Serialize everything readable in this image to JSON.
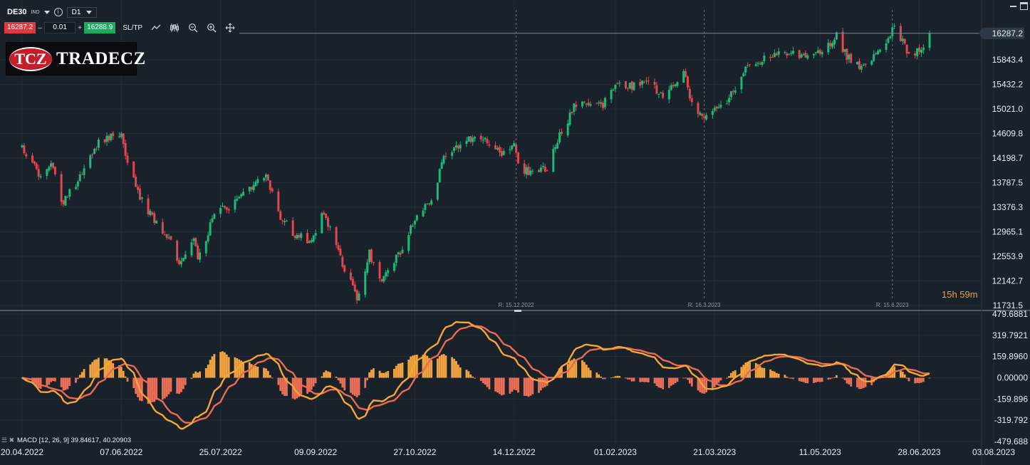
{
  "toolbar": {
    "symbol": "DE30",
    "asset_class": "IND",
    "timeframe": "D1",
    "bid": "16287.2",
    "lot_minus": "–",
    "lot": "0.01",
    "lot_plus": "+",
    "ask": "16288.9",
    "sltp": "SL/TP",
    "icons": [
      "line-chart-icon",
      "candles-icon",
      "zoom-out-icon",
      "zoom-in-icon",
      "crosshair-icon"
    ]
  },
  "logo": {
    "badge": "TCZ",
    "name": "TRADECZ"
  },
  "countdown": "15h 59m",
  "colors": {
    "background": "#19212a",
    "bullish": "#1bb97a",
    "bearish": "#e2464e",
    "macd_line": "#f7a534",
    "signal_line": "#ea6b51",
    "hist_positive": "#f2a440",
    "hist_negative": "#ec7058"
  },
  "chart_data": [
    {
      "type": "candlestick",
      "symbol": "DE30",
      "timeframe": "D1",
      "current_price": 16287.2,
      "y_ticks": [
        16287.2,
        15843.4,
        15432.2,
        15021.0,
        14609.8,
        14198.7,
        13787.5,
        13376.3,
        12965.1,
        12553.9,
        12142.7,
        11731.5
      ],
      "y_tick_labels": [
        "16287.2",
        "15843.4",
        "15432.2",
        "15021.0",
        "14609.8",
        "14198.7",
        "13787.5",
        "13376.3",
        "12965.1",
        "12553.9",
        "12142.7",
        "11731.5"
      ],
      "ylim": [
        11731.5,
        16700
      ],
      "x_tick_labels": [
        "20.04.2022",
        "07.06.2022",
        "25.07.2022",
        "09.09.2022",
        "27.10.2022",
        "14.12.2022",
        "01.02.2023",
        "21.03.2023",
        "11.05.2023",
        "28.06.2023",
        "03.08.2023"
      ],
      "rollover_markers": [
        "R: 15.12.2022",
        "R: 16.3.2023",
        "R: 15.6.2023"
      ],
      "anchors": [
        {
          "date": "2022-04-20",
          "close": 14400
        },
        {
          "date": "2022-04-29",
          "close": 13850
        },
        {
          "date": "2022-05-05",
          "close": 14100
        },
        {
          "date": "2022-05-09",
          "close": 13400
        },
        {
          "date": "2022-05-20",
          "close": 14000
        },
        {
          "date": "2022-05-27",
          "close": 14450
        },
        {
          "date": "2022-06-02",
          "close": 14560
        },
        {
          "date": "2022-06-07",
          "close": 14650
        },
        {
          "date": "2022-06-10",
          "close": 14100
        },
        {
          "date": "2022-06-16",
          "close": 13550
        },
        {
          "date": "2022-06-24",
          "close": 13100
        },
        {
          "date": "2022-07-01",
          "close": 12800
        },
        {
          "date": "2022-07-05",
          "close": 12450
        },
        {
          "date": "2022-07-12",
          "close": 12850
        },
        {
          "date": "2022-07-14",
          "close": 12500
        },
        {
          "date": "2022-07-22",
          "close": 13250
        },
        {
          "date": "2022-08-01",
          "close": 13450
        },
        {
          "date": "2022-08-16",
          "close": 13900
        },
        {
          "date": "2022-08-22",
          "close": 13250
        },
        {
          "date": "2022-08-29",
          "close": 12950
        },
        {
          "date": "2022-09-06",
          "close": 12800
        },
        {
          "date": "2022-09-13",
          "close": 13300
        },
        {
          "date": "2022-09-23",
          "close": 12350
        },
        {
          "date": "2022-09-29",
          "close": 11850
        },
        {
          "date": "2022-10-05",
          "close": 12600
        },
        {
          "date": "2022-10-11",
          "close": 12150
        },
        {
          "date": "2022-10-21",
          "close": 12700
        },
        {
          "date": "2022-10-28",
          "close": 13250
        },
        {
          "date": "2022-11-04",
          "close": 13450
        },
        {
          "date": "2022-11-10",
          "close": 14200
        },
        {
          "date": "2022-11-18",
          "close": 14450
        },
        {
          "date": "2022-11-25",
          "close": 14550
        },
        {
          "date": "2022-12-01",
          "close": 14500
        },
        {
          "date": "2022-12-08",
          "close": 14250
        },
        {
          "date": "2022-12-14",
          "close": 14450
        },
        {
          "date": "2022-12-16",
          "close": 14050
        },
        {
          "date": "2022-12-22",
          "close": 13950
        },
        {
          "date": "2022-12-30",
          "close": 14050
        },
        {
          "date": "2023-01-04",
          "close": 14500
        },
        {
          "date": "2023-01-12",
          "close": 15050
        },
        {
          "date": "2023-01-18",
          "close": 15150
        },
        {
          "date": "2023-01-26",
          "close": 15100
        },
        {
          "date": "2023-02-02",
          "close": 15450
        },
        {
          "date": "2023-02-09",
          "close": 15400
        },
        {
          "date": "2023-02-16",
          "close": 15500
        },
        {
          "date": "2023-02-24",
          "close": 15250
        },
        {
          "date": "2023-03-06",
          "close": 15600
        },
        {
          "date": "2023-03-10",
          "close": 15150
        },
        {
          "date": "2023-03-15",
          "close": 14850
        },
        {
          "date": "2023-03-20",
          "close": 14950
        },
        {
          "date": "2023-03-28",
          "close": 15200
        },
        {
          "date": "2023-04-04",
          "close": 15650
        },
        {
          "date": "2023-04-14",
          "close": 15850
        },
        {
          "date": "2023-04-21",
          "close": 15950
        },
        {
          "date": "2023-04-28",
          "close": 15950
        },
        {
          "date": "2023-05-04",
          "close": 15900
        },
        {
          "date": "2023-05-12",
          "close": 15950
        },
        {
          "date": "2023-05-19",
          "close": 16250
        },
        {
          "date": "2023-05-24",
          "close": 15900
        },
        {
          "date": "2023-05-31",
          "close": 15700
        },
        {
          "date": "2023-06-08",
          "close": 15950
        },
        {
          "date": "2023-06-14",
          "close": 16300
        },
        {
          "date": "2023-06-16",
          "close": 16400
        },
        {
          "date": "2023-06-23",
          "close": 15950
        },
        {
          "date": "2023-06-28",
          "close": 16000
        },
        {
          "date": "2023-07-03",
          "close": 16287
        }
      ]
    },
    {
      "type": "line",
      "name": "MACD",
      "label": "MACD [12, 26, 9] 39.84617, 40.20903",
      "params": [
        12,
        26,
        9
      ],
      "macd_value": 39.84617,
      "signal_value": 40.20903,
      "y_ticks": [
        479.6881,
        319.7921,
        159.896,
        0.0,
        -159.896,
        -319.792,
        -479.688
      ],
      "y_tick_labels": [
        "479.6881",
        "319.7921",
        "159.8960",
        "0.00000",
        "-159.896",
        "-319.792",
        "-479.688"
      ],
      "ylim": [
        -479.688,
        479.6881
      ]
    }
  ]
}
